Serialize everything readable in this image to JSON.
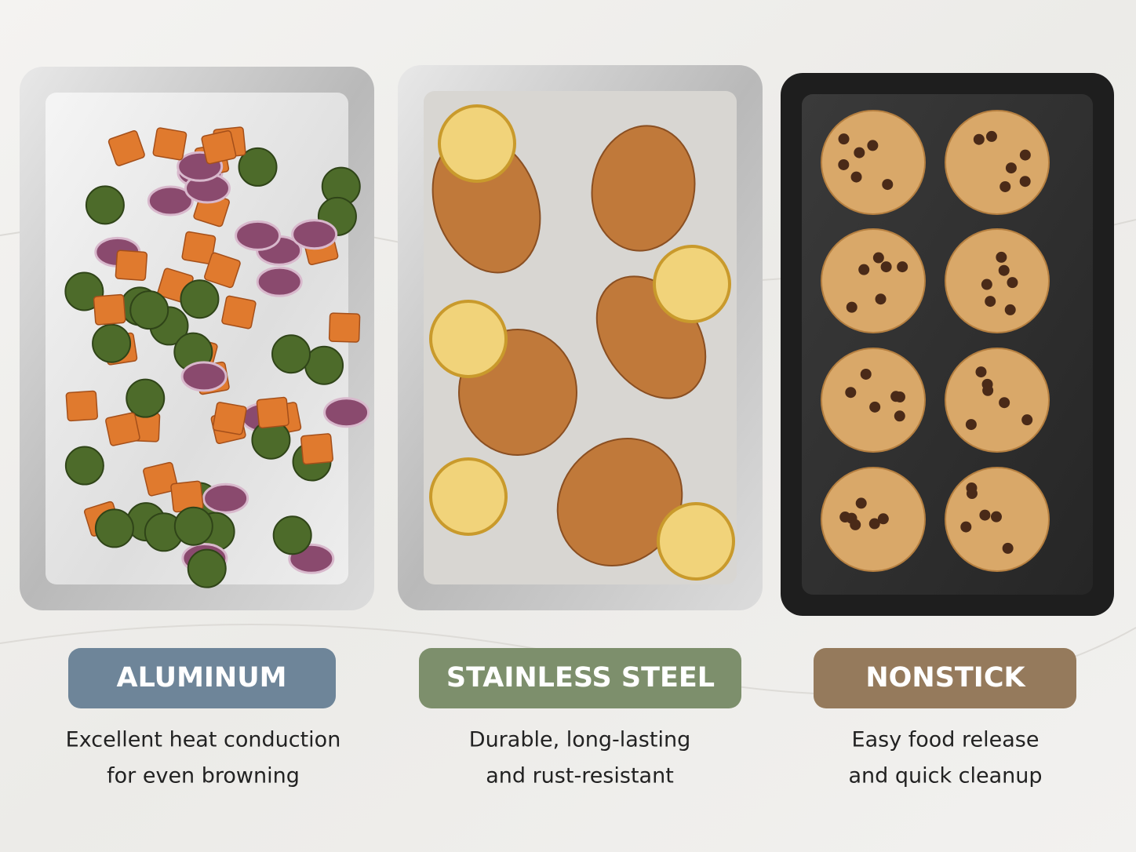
{
  "panels": [
    {
      "label": "ALUMINUM",
      "description": [
        "Excellent heat conduction",
        "for even browning"
      ]
    },
    {
      "label": "STAINLESS STEEL",
      "description": [
        "Durable, long-lasting",
        "and rust-resistant"
      ]
    },
    {
      "label": "NONSTICK",
      "description": [
        "Easy food release",
        "and quick cleanup"
      ]
    }
  ]
}
